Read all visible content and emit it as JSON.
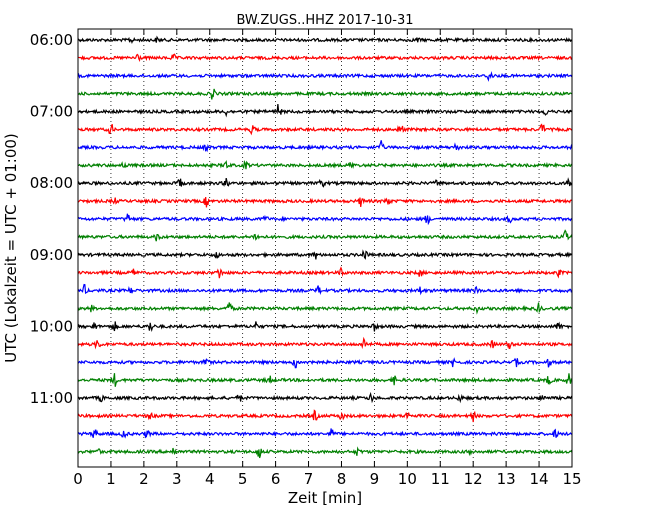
{
  "chart_data": {
    "type": "line",
    "title": "BW.ZUGS..HHZ 2017-10-31",
    "xlabel": "Zeit  [min]",
    "ylabel": "UTC (Lokalzeit = UTC + 01:00)",
    "xlim": [
      0,
      15
    ],
    "x_ticks": [
      0,
      1,
      2,
      3,
      4,
      5,
      6,
      7,
      8,
      9,
      10,
      11,
      12,
      13,
      14,
      15
    ],
    "x_tick_labels": [
      "0",
      "1",
      "2",
      "3",
      "4",
      "5",
      "6",
      "7",
      "8",
      "9",
      "10",
      "11",
      "12",
      "13",
      "14",
      "15"
    ],
    "y_tick_labels": [
      "06:00",
      "07:00",
      "08:00",
      "09:00",
      "10:00",
      "11:00"
    ],
    "grid": "vertical dotted",
    "trace_colors": [
      "#000000",
      "#ff0000",
      "#0000ff",
      "#008000"
    ],
    "traces": [
      {
        "start": "06:00",
        "color": "#000000",
        "events": [
          [
            1.6,
            3
          ],
          [
            2.4,
            2
          ],
          [
            10.3,
            2
          ]
        ]
      },
      {
        "start": "06:15",
        "color": "#ff0000",
        "events": [
          [
            1.8,
            6
          ],
          [
            2.9,
            3
          ]
        ]
      },
      {
        "start": "06:30",
        "color": "#0000ff",
        "events": [
          [
            12.5,
            7
          ]
        ]
      },
      {
        "start": "06:45",
        "color": "#008000",
        "events": [
          [
            4.1,
            7
          ]
        ]
      },
      {
        "start": "07:00",
        "color": "#000000",
        "events": [
          [
            6.1,
            8
          ],
          [
            4.5,
            3
          ],
          [
            14.2,
            3
          ]
        ]
      },
      {
        "start": "07:15",
        "color": "#ff0000",
        "events": [
          [
            1.0,
            6
          ],
          [
            5.3,
            5
          ],
          [
            9.8,
            7
          ],
          [
            14.1,
            6
          ]
        ]
      },
      {
        "start": "07:30",
        "color": "#0000ff",
        "events": [
          [
            9.2,
            6
          ],
          [
            11.5,
            5
          ],
          [
            3.9,
            3
          ]
        ]
      },
      {
        "start": "07:45",
        "color": "#008000",
        "events": [
          [
            1.4,
            3
          ],
          [
            4.5,
            4
          ],
          [
            5.1,
            4
          ],
          [
            8.3,
            3
          ]
        ]
      },
      {
        "start": "08:00",
        "color": "#000000",
        "events": [
          [
            3.1,
            5
          ],
          [
            4.5,
            5
          ],
          [
            7.4,
            5
          ],
          [
            14.9,
            5
          ],
          [
            10.9,
            3
          ]
        ]
      },
      {
        "start": "08:15",
        "color": "#ff0000",
        "events": [
          [
            3.9,
            5
          ],
          [
            8.6,
            5
          ],
          [
            9.4,
            5
          ],
          [
            1.1,
            3
          ]
        ]
      },
      {
        "start": "08:30",
        "color": "#0000ff",
        "events": [
          [
            1.5,
            6
          ],
          [
            10.6,
            5
          ],
          [
            13.1,
            3
          ],
          [
            5.7,
            3
          ]
        ]
      },
      {
        "start": "08:45",
        "color": "#008000",
        "events": [
          [
            2.4,
            4
          ],
          [
            5.4,
            4
          ],
          [
            14.8,
            6
          ]
        ]
      },
      {
        "start": "09:00",
        "color": "#000000",
        "events": [
          [
            7.2,
            4
          ],
          [
            8.7,
            6
          ],
          [
            4.2,
            3
          ]
        ]
      },
      {
        "start": "09:15",
        "color": "#ff0000",
        "events": [
          [
            4.3,
            6
          ],
          [
            1.7,
            3
          ],
          [
            10.4,
            4
          ],
          [
            14.6,
            3
          ],
          [
            8.0,
            4
          ]
        ]
      },
      {
        "start": "09:30",
        "color": "#0000ff",
        "events": [
          [
            0.2,
            5
          ],
          [
            1.6,
            3
          ],
          [
            7.3,
            4
          ],
          [
            10.4,
            4
          ],
          [
            12.1,
            3
          ]
        ]
      },
      {
        "start": "09:45",
        "color": "#008000",
        "events": [
          [
            4.6,
            7
          ],
          [
            14.0,
            5
          ],
          [
            0.4,
            3
          ],
          [
            12.1,
            3
          ]
        ]
      },
      {
        "start": "10:00",
        "color": "#000000",
        "events": [
          [
            0.5,
            4
          ],
          [
            1.1,
            5
          ],
          [
            2.2,
            6
          ],
          [
            5.4,
            4
          ],
          [
            9.0,
            4
          ],
          [
            14.6,
            4
          ]
        ]
      },
      {
        "start": "10:15",
        "color": "#ff0000",
        "events": [
          [
            0.6,
            6
          ],
          [
            8.7,
            7
          ],
          [
            12.6,
            4
          ],
          [
            13.1,
            4
          ]
        ]
      },
      {
        "start": "10:30",
        "color": "#0000ff",
        "events": [
          [
            3.9,
            5
          ],
          [
            6.6,
            6
          ],
          [
            7.1,
            5
          ],
          [
            11.4,
            4
          ],
          [
            13.3,
            4
          ],
          [
            14.3,
            4
          ]
        ]
      },
      {
        "start": "10:45",
        "color": "#008000",
        "events": [
          [
            1.1,
            7
          ],
          [
            5.8,
            5
          ],
          [
            9.6,
            4
          ],
          [
            14.3,
            5
          ],
          [
            14.9,
            6
          ]
        ]
      },
      {
        "start": "11:00",
        "color": "#000000",
        "events": [
          [
            0.7,
            3
          ],
          [
            4.9,
            4
          ],
          [
            8.9,
            4
          ],
          [
            11.6,
            3
          ],
          [
            14.1,
            4
          ]
        ]
      },
      {
        "start": "11:15",
        "color": "#ff0000",
        "events": [
          [
            7.2,
            5
          ],
          [
            8.0,
            4
          ],
          [
            10.0,
            4
          ],
          [
            12.0,
            5
          ],
          [
            2.2,
            3
          ]
        ]
      },
      {
        "start": "11:30",
        "color": "#0000ff",
        "events": [
          [
            0.5,
            6
          ],
          [
            1.4,
            5
          ],
          [
            2.1,
            4
          ],
          [
            7.7,
            5
          ],
          [
            12.7,
            18
          ],
          [
            14.5,
            4
          ]
        ]
      },
      {
        "start": "11:45",
        "color": "#008000",
        "events": [
          [
            0.6,
            3
          ],
          [
            2.9,
            4
          ],
          [
            5.5,
            7
          ],
          [
            8.5,
            4
          ],
          [
            11.9,
            3
          ]
        ]
      }
    ]
  }
}
